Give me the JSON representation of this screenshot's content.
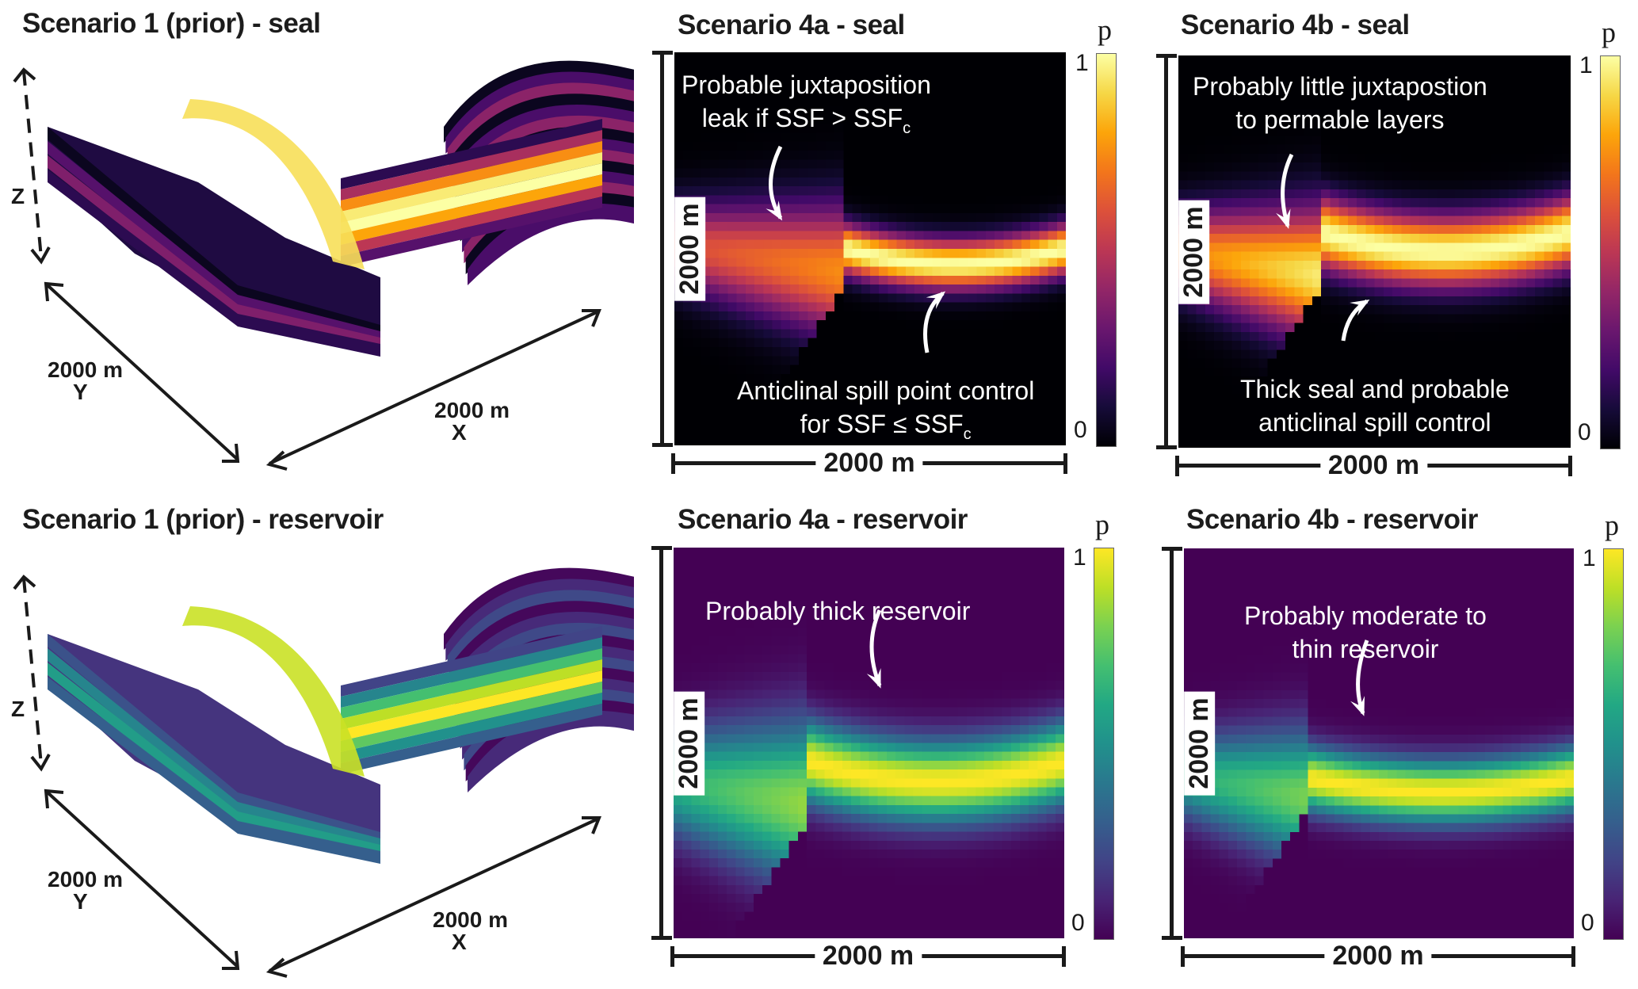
{
  "figure": {
    "panels_3d": [
      {
        "title": "Scenario 1 (prior) - seal",
        "colormap": "inferno",
        "axes": {
          "z_label": "Z",
          "y_label": "2000 m",
          "y_axis": "Y",
          "x_label": "2000 m",
          "x_axis": "X"
        }
      },
      {
        "title": "Scenario 1 (prior) -  reservoir",
        "colormap": "viridis",
        "axes": {
          "z_label": "Z",
          "y_label": "2000 m",
          "y_axis": "Y",
          "x_label": "2000 m",
          "x_axis": "X"
        }
      }
    ],
    "colors": {
      "inferno_low": "#000004",
      "inferno_high": "#fcffa4",
      "viridis_low": "#440154",
      "viridis_high": "#fde725",
      "ink": "#1a1a1a",
      "annotation": "#ffffff"
    }
  },
  "chart_data": [
    {
      "type": "heatmap",
      "id": "4a-seal",
      "title": "Scenario 4a - seal",
      "colormap": "inferno",
      "colorbar": {
        "label": "p",
        "min": 0,
        "max": 1,
        "ticks": [
          "0",
          "1"
        ]
      },
      "xlabel": "2000 m",
      "ylabel": "2000 m",
      "xlim_m": [
        0,
        2000
      ],
      "ylim_m": [
        0,
        2000
      ],
      "annotations": [
        {
          "lines": [
            "Probable juxtaposition",
            "leak if SSF > SSF"
          ],
          "sub": "c",
          "arrow": "down-left"
        },
        {
          "lines": [
            "Anticlinal spill point control",
            "for SSF ≤ SSF"
          ],
          "sub": "c",
          "arrow": "up"
        }
      ],
      "description": "Probability of seal layer along a cross-section; fault near x≈900 m offsets layer; footwall (left) band centered ~1150 m depth peaking ~0.75, hanging wall (right) bright band centered ~1000 m peaking ~1.0",
      "left_block": {
        "x_range_m": [
          0,
          870
        ],
        "band_center_m": [
          980,
          1120
        ],
        "band_halfwidth_m": 260,
        "peak_p": 0.75,
        "tilt": "down-right"
      },
      "right_block": {
        "x_range_m": [
          870,
          2000
        ],
        "band_center_m": [
          1000,
          1080,
          1000
        ],
        "band_halfwidth_m": 140,
        "peak_p": 1.0
      }
    },
    {
      "type": "heatmap",
      "id": "4b-seal",
      "title": "Scenario 4b - seal",
      "colormap": "inferno",
      "colorbar": {
        "label": "p",
        "min": 0,
        "max": 1,
        "ticks": [
          "0",
          "1"
        ]
      },
      "xlabel": "2000 m",
      "ylabel": "2000 m",
      "xlim_m": [
        0,
        2000
      ],
      "ylim_m": [
        0,
        2000
      ],
      "annotations": [
        {
          "lines": [
            "Probably little juxtapostion",
            "to permable layers"
          ],
          "sub": "",
          "arrow": "down"
        },
        {
          "lines": [
            "Thick seal and probable",
            "anticlinal spill control"
          ],
          "sub": "",
          "arrow": "up"
        }
      ],
      "left_block": {
        "x_range_m": [
          0,
          720
        ],
        "band_center_m": [
          1000,
          1120
        ],
        "band_halfwidth_m": 260,
        "peak_p": 0.95,
        "tilt": "down-right"
      },
      "right_block": {
        "x_range_m": [
          720,
          2000
        ],
        "band_center_m": [
          900,
          1000,
          900
        ],
        "band_halfwidth_m": 200,
        "peak_p": 1.0
      }
    },
    {
      "type": "heatmap",
      "id": "4a-reservoir",
      "title": "Scenario 4a -  reservoir",
      "colormap": "viridis",
      "colorbar": {
        "label": "p",
        "min": 0,
        "max": 1,
        "ticks": [
          "0",
          "1"
        ]
      },
      "xlabel": "2000 m",
      "ylabel": "2000 m",
      "xlim_m": [
        0,
        2000
      ],
      "ylim_m": [
        0,
        2000
      ],
      "annotations": [
        {
          "lines": [
            "Probably thick reservoir"
          ],
          "sub": "",
          "arrow": "down"
        }
      ],
      "left_block": {
        "x_range_m": [
          0,
          700
        ],
        "band_center_m": [
          1200,
          1320
        ],
        "band_halfwidth_m": 330,
        "peak_p": 0.85,
        "tilt": "down-right"
      },
      "right_block": {
        "x_range_m": [
          700,
          2000
        ],
        "band_center_m": [
          1100,
          1200,
          1100
        ],
        "band_halfwidth_m": 230,
        "peak_p": 1.0
      }
    },
    {
      "type": "heatmap",
      "id": "4b-reservoir",
      "title": "Scenario 4b -  reservoir",
      "colormap": "viridis",
      "colorbar": {
        "label": "p",
        "min": 0,
        "max": 1,
        "ticks": [
          "0",
          "1"
        ]
      },
      "xlabel": "2000 m",
      "ylabel": "2000 m",
      "xlim_m": [
        0,
        2000
      ],
      "ylim_m": [
        0,
        2000
      ],
      "annotations": [
        {
          "lines": [
            "Probably moderate to",
            "thin reservoir"
          ],
          "sub": "",
          "arrow": "down"
        }
      ],
      "left_block": {
        "x_range_m": [
          0,
          640
        ],
        "band_center_m": [
          1170,
          1280
        ],
        "band_halfwidth_m": 260,
        "peak_p": 0.8,
        "tilt": "down-right"
      },
      "right_block": {
        "x_range_m": [
          640,
          2000
        ],
        "band_center_m": [
          1180,
          1250,
          1180
        ],
        "band_halfwidth_m": 180,
        "peak_p": 1.0
      }
    }
  ]
}
